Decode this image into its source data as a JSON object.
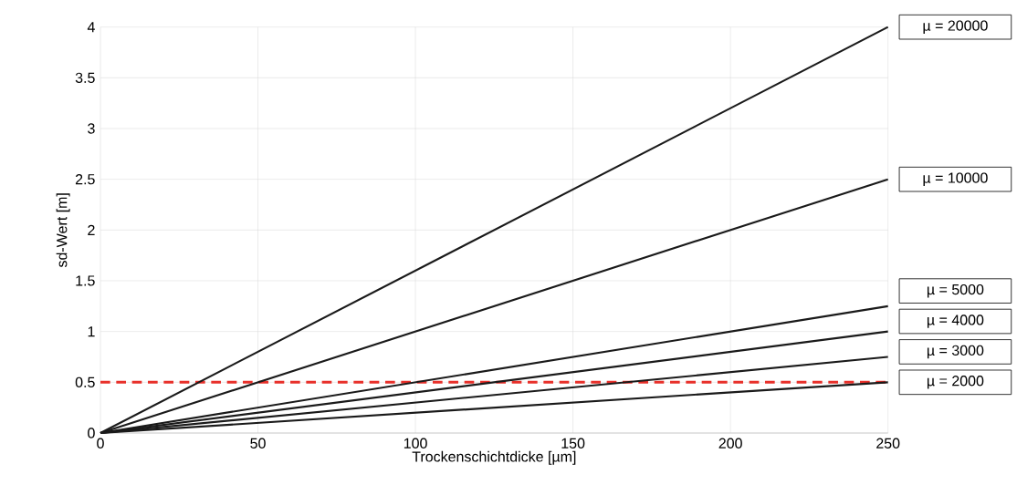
{
  "chart_data": {
    "type": "line",
    "xlabel": "Trockenschichtdicke [µm]",
    "ylabel": "sd-Wert [m]",
    "xlim": [
      0,
      250
    ],
    "ylim": [
      0,
      4
    ],
    "xticks": [
      0,
      50,
      100,
      150,
      200,
      250
    ],
    "yticks": [
      0,
      0.5,
      1,
      1.5,
      2,
      2.5,
      3,
      3.5,
      4
    ],
    "grid": true,
    "line_style": "solid",
    "x": [
      0,
      250
    ],
    "series": [
      {
        "name": "µ = 20000",
        "color": "#1a1a1a",
        "values": [
          0,
          4
        ]
      },
      {
        "name": "µ = 10000",
        "color": "#1a1a1a",
        "values": [
          0,
          2.5
        ]
      },
      {
        "name": "µ = 5000",
        "color": "#1a1a1a",
        "values": [
          0,
          1.25
        ]
      },
      {
        "name": "µ = 4000",
        "color": "#1a1a1a",
        "values": [
          0,
          1
        ]
      },
      {
        "name": "µ = 3000",
        "color": "#1a1a1a",
        "values": [
          0,
          0.75
        ]
      },
      {
        "name": "µ = 2000",
        "color": "#1a1a1a",
        "values": [
          0,
          0.5
        ]
      }
    ],
    "ref_lines": [
      {
        "axis": "y",
        "value": 0.5,
        "color": "#e8302a",
        "line_style": "dashed"
      }
    ]
  }
}
